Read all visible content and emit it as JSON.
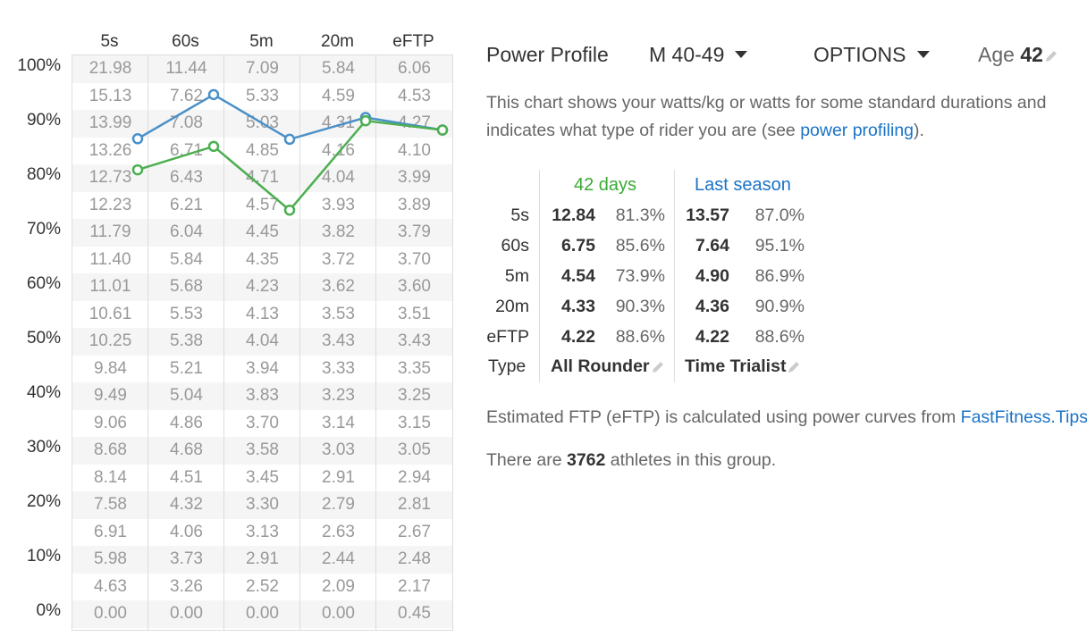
{
  "columns": [
    "5s",
    "60s",
    "5m",
    "20m",
    "eFTP"
  ],
  "y_labels": [
    "100%",
    "90%",
    "80%",
    "70%",
    "60%",
    "50%",
    "40%",
    "30%",
    "20%",
    "10%",
    "0%"
  ],
  "grid_rows": [
    [
      "21.98",
      "11.44",
      "7.09",
      "5.84",
      "6.06"
    ],
    [
      "15.13",
      "7.62",
      "5.33",
      "4.59",
      "4.53"
    ],
    [
      "13.99",
      "7.08",
      "5.03",
      "4.31",
      "4.27"
    ],
    [
      "13.26",
      "6.71",
      "4.85",
      "4.16",
      "4.10"
    ],
    [
      "12.73",
      "6.43",
      "4.71",
      "4.04",
      "3.99"
    ],
    [
      "12.23",
      "6.21",
      "4.57",
      "3.93",
      "3.89"
    ],
    [
      "11.79",
      "6.04",
      "4.45",
      "3.82",
      "3.79"
    ],
    [
      "11.40",
      "5.84",
      "4.35",
      "3.72",
      "3.70"
    ],
    [
      "11.01",
      "5.68",
      "4.23",
      "3.62",
      "3.60"
    ],
    [
      "10.61",
      "5.53",
      "4.13",
      "3.53",
      "3.51"
    ],
    [
      "10.25",
      "5.38",
      "4.04",
      "3.43",
      "3.43"
    ],
    [
      "9.84",
      "5.21",
      "3.94",
      "3.33",
      "3.35"
    ],
    [
      "9.49",
      "5.04",
      "3.83",
      "3.23",
      "3.25"
    ],
    [
      "9.06",
      "4.86",
      "3.70",
      "3.14",
      "3.15"
    ],
    [
      "8.68",
      "4.68",
      "3.58",
      "3.03",
      "3.05"
    ],
    [
      "8.14",
      "4.51",
      "3.45",
      "2.91",
      "2.94"
    ],
    [
      "7.58",
      "4.32",
      "3.30",
      "2.79",
      "2.81"
    ],
    [
      "6.91",
      "4.06",
      "3.13",
      "2.63",
      "2.67"
    ],
    [
      "5.98",
      "3.73",
      "2.91",
      "2.44",
      "2.48"
    ],
    [
      "4.63",
      "3.26",
      "2.52",
      "2.09",
      "2.17"
    ],
    [
      "0.00",
      "0.00",
      "0.00",
      "0.00",
      "0.45"
    ]
  ],
  "chart_data": {
    "type": "line",
    "categories": [
      "5s",
      "60s",
      "5m",
      "20m",
      "eFTP"
    ],
    "ylim": [
      0,
      100
    ],
    "series": [
      {
        "name": "Last season",
        "color": "#4a90c8",
        "values": [
          87.0,
          95.1,
          86.9,
          90.9,
          88.6
        ]
      },
      {
        "name": "42 days",
        "color": "#4caf50",
        "values": [
          81.3,
          85.6,
          73.9,
          90.3,
          88.6
        ]
      }
    ]
  },
  "header": {
    "title": "Power Profile",
    "group": "M 40-49",
    "options": "OPTIONS",
    "age_label": "Age",
    "age_value": "42"
  },
  "description": {
    "line1": "This chart shows your watts/kg or watts for some standard durations and",
    "line2_prefix": "indicates what type of rider you are (see ",
    "line2_link": "power profiling",
    "line2_suffix": ")."
  },
  "stats": {
    "col1_title": "42 days",
    "col2_title": "Last season",
    "col1_color": "#3aaa35",
    "col2_color": "#1a73c6",
    "rows": [
      {
        "label": "5s",
        "v1": "12.84",
        "p1": "81.3%",
        "v2": "13.57",
        "p2": "87.0%"
      },
      {
        "label": "60s",
        "v1": "6.75",
        "p1": "85.6%",
        "v2": "7.64",
        "p2": "95.1%"
      },
      {
        "label": "5m",
        "v1": "4.54",
        "p1": "73.9%",
        "v2": "4.90",
        "p2": "86.9%"
      },
      {
        "label": "20m",
        "v1": "4.33",
        "p1": "90.3%",
        "v2": "4.36",
        "p2": "90.9%"
      },
      {
        "label": "eFTP",
        "v1": "4.22",
        "p1": "88.6%",
        "v2": "4.22",
        "p2": "88.6%"
      }
    ],
    "type_label": "Type",
    "type1": "All Rounder",
    "type2": "Time Trialist"
  },
  "eftp_note": {
    "prefix": "Estimated FTP (eFTP) is calculated using power curves from ",
    "link": "FastFitness.Tips"
  },
  "athletes": {
    "prefix": "There are ",
    "count": "3762",
    "suffix": " athletes in this group."
  }
}
